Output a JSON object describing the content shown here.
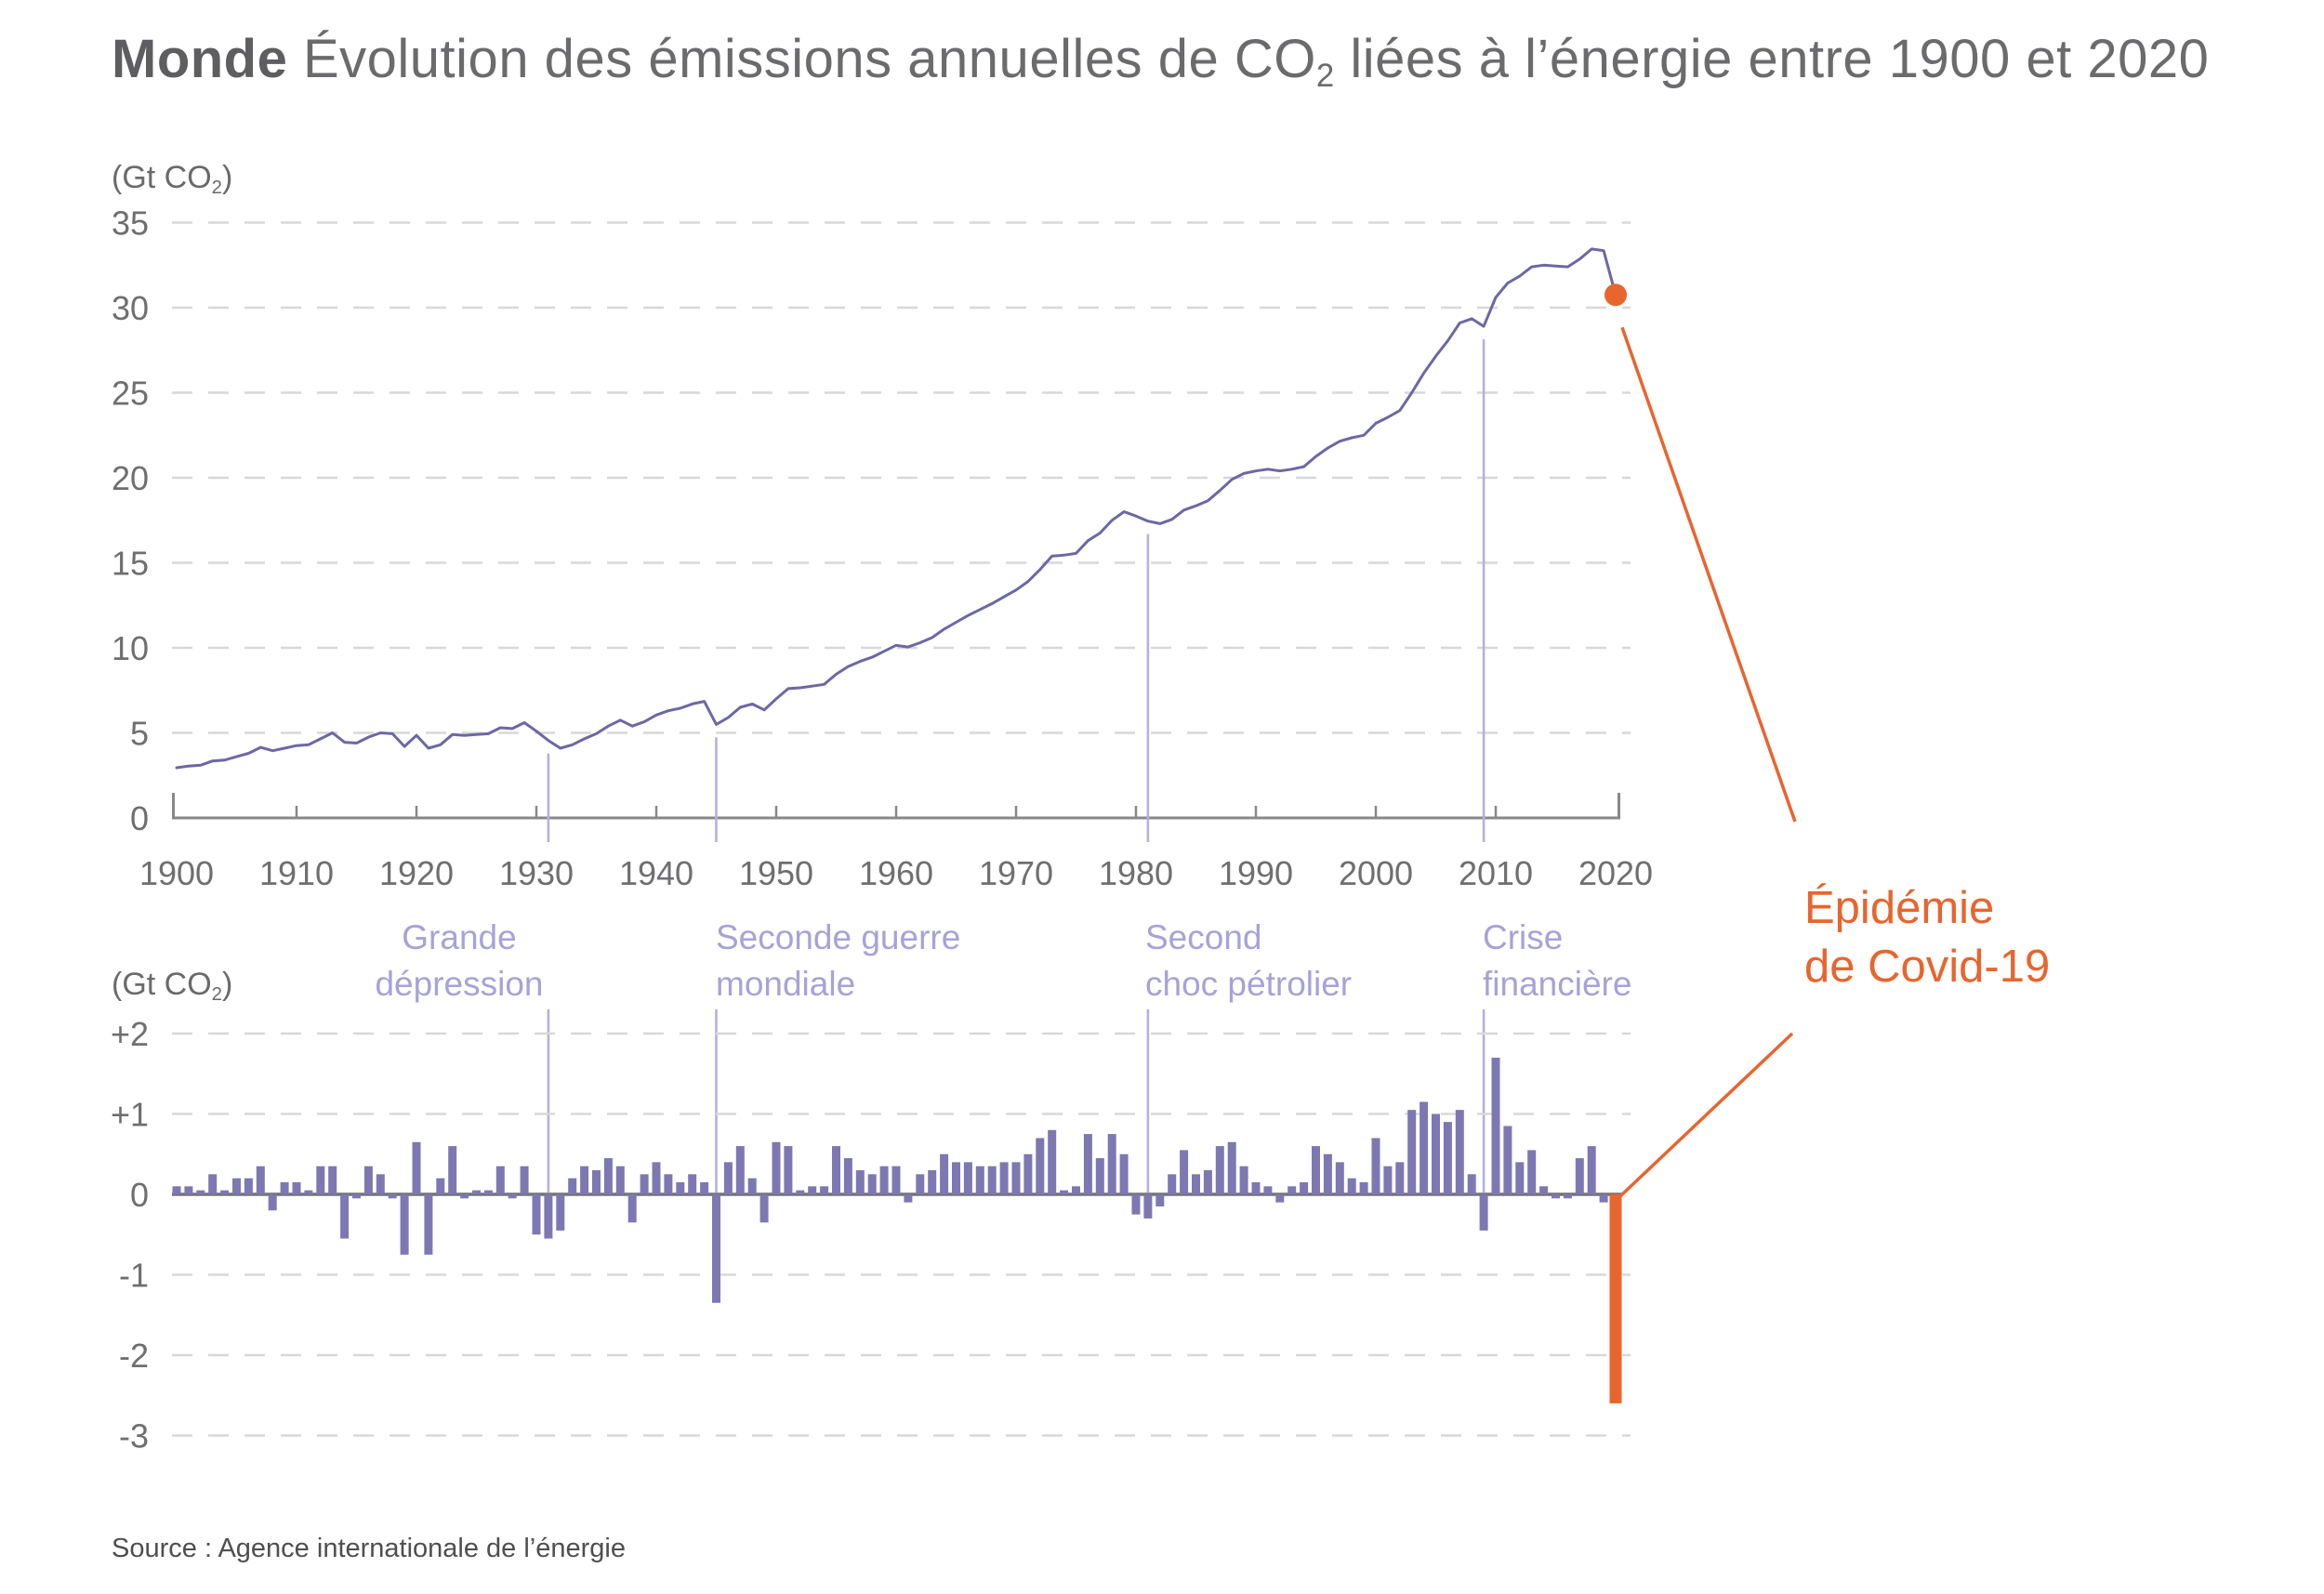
{
  "title": {
    "bold": "Monde",
    "main": " Évolution des émissions annuelles de CO",
    "sub": "2",
    "tail": " liées à l’énergie entre 1900 et 2020"
  },
  "unit": {
    "pre": "(Gt CO",
    "sub": "2",
    "post": ")"
  },
  "source": "Source : Agence internationale de l’énergie",
  "epidemic_label": {
    "line1": "Épidémie",
    "line2": "de Covid-19"
  },
  "colors": {
    "line": "#6C68A6",
    "bars": "#7D78B2",
    "accent_orange": "#E8652E",
    "annotation_purple": "#A8A2D8",
    "vertical_line_purple": "#B5B0DE",
    "grid": "#D8D8DA",
    "axis": "#88888B",
    "text_gray": "#6F6F71"
  },
  "annotations": [
    {
      "line1": "Grande",
      "line2": "dépression",
      "year": 1931,
      "align": "center-left-of-line"
    },
    {
      "line1": "Seconde guerre",
      "line2": "mondiale",
      "year": 1945,
      "align": "left-at-line"
    },
    {
      "line1": "Second",
      "line2": "choc pétrolier",
      "year": 1981,
      "align": "left-at-line"
    },
    {
      "line1": "Crise",
      "line2": "financière",
      "year": 2009,
      "align": "left-at-line"
    }
  ],
  "top_axis": {
    "y_ticks": [
      35,
      30,
      25,
      20,
      15,
      10,
      5,
      0
    ],
    "x_ticks": [
      1900,
      1910,
      1920,
      1930,
      1940,
      1950,
      1960,
      1970,
      1980,
      1990,
      2000,
      2010,
      2020
    ]
  },
  "bottom_axis": {
    "y_tick_labels": [
      "+2",
      "+1",
      "0",
      "-1",
      "-2",
      "-3"
    ],
    "y_tick_values": [
      2,
      1,
      0,
      -1,
      -2,
      -3
    ]
  },
  "chart_data": [
    {
      "type": "line",
      "title": "Monde — Évolution des émissions annuelles de CO2 liées à l’énergie entre 1900 et 2020",
      "xlabel": "",
      "ylabel": "(Gt CO2)",
      "x_range": [
        1900,
        2020
      ],
      "ylim": [
        0,
        35
      ],
      "ytick_step": 5,
      "grid": "horizontal dashed",
      "series": [
        {
          "name": "Émissions annuelles de CO2 liées à l’énergie (Gt CO2)",
          "x0": 1900,
          "dx": 1,
          "values": [
            2.95,
            3.05,
            3.1,
            3.35,
            3.4,
            3.6,
            3.8,
            4.15,
            3.95,
            4.1,
            4.25,
            4.3,
            4.65,
            5.0,
            4.45,
            4.4,
            4.75,
            5.0,
            4.95,
            4.2,
            4.85,
            4.1,
            4.3,
            4.9,
            4.85,
            4.9,
            4.95,
            5.3,
            5.25,
            5.6,
            5.1,
            4.55,
            4.1,
            4.3,
            4.65,
            4.95,
            5.4,
            5.75,
            5.4,
            5.65,
            6.05,
            6.3,
            6.45,
            6.7,
            6.85,
            5.5,
            5.9,
            6.5,
            6.7,
            6.35,
            7.0,
            7.6,
            7.65,
            7.75,
            7.85,
            8.45,
            8.9,
            9.2,
            9.45,
            9.8,
            10.15,
            10.05,
            10.3,
            10.6,
            11.1,
            11.5,
            11.9,
            12.25,
            12.6,
            13.0,
            13.4,
            13.9,
            14.6,
            15.4,
            15.45,
            15.55,
            16.3,
            16.75,
            17.5,
            18.0,
            17.75,
            17.45,
            17.3,
            17.55,
            18.1,
            18.35,
            18.65,
            19.25,
            19.9,
            20.25,
            20.4,
            20.5,
            20.4,
            20.5,
            20.65,
            21.25,
            21.75,
            22.15,
            22.35,
            22.5,
            23.2,
            23.55,
            23.95,
            25.0,
            26.15,
            27.15,
            28.05,
            29.1,
            29.35,
            28.9,
            30.6,
            31.45,
            31.85,
            32.4,
            32.5,
            32.45,
            32.4,
            32.85,
            33.45,
            33.35,
            30.75
          ]
        }
      ],
      "marker": {
        "x": 2020,
        "y": 30.75,
        "color": "#E8652E",
        "label": "Épidémie de Covid-19"
      }
    },
    {
      "type": "bar",
      "title": "Variation annuelle des émissions (Gt CO2)",
      "ylabel": "(Gt CO2)",
      "ylim": [
        -3,
        2
      ],
      "grid": "horizontal dashed",
      "derivation": "bar value for year N = emissions(N) - emissions(N-1), computed from the line series above",
      "implied_value_1899": 2.85,
      "highlight": {
        "x": 2020,
        "value": -2.6,
        "color": "#E8652E",
        "label": "Épidémie de Covid-19"
      }
    }
  ]
}
